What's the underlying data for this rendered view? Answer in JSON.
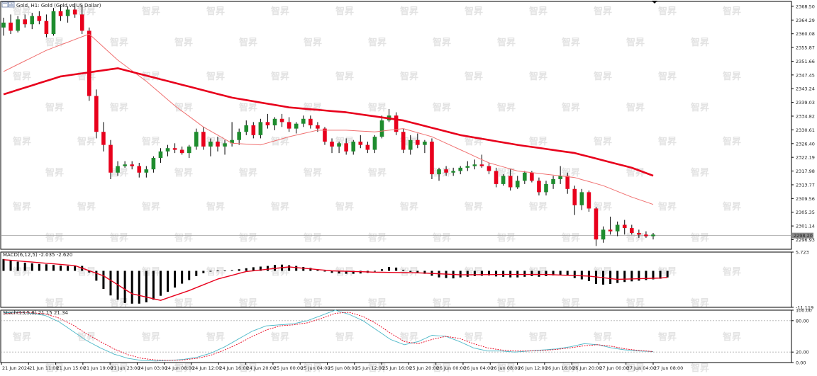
{
  "header": {
    "title": "Gold, H1:  Gold (Gold vs US Dollar)",
    "watermark": "智昇"
  },
  "colors": {
    "bull": "#1e8c2e",
    "bear": "#e8001c",
    "ma_slow": "#e8001c",
    "ma_fast": "#f07070",
    "macd_signal": "#e8001c",
    "macd_hist": "#000000",
    "stoch_main": "#4db8c8",
    "stoch_signal": "#e8001c",
    "bid_line": "#a0a0a0"
  },
  "chart_data": [
    {
      "type": "candlestick",
      "name": "Gold, H1",
      "ylim": [
        2294.0,
        2370.0
      ],
      "y_ticks": [
        "2368.50",
        "2364.29",
        "2360.08",
        "2355.87",
        "2351.66",
        "2347.45",
        "2343.24",
        "2339.03",
        "2334.82",
        "2330.61",
        "2326.40",
        "2322.19",
        "2317.98",
        "2313.77",
        "2309.56",
        "2305.35",
        "2301.14",
        "2296.93"
      ],
      "current_price_label": "2298.20",
      "current_price": 2298.2,
      "x_ticks": [
        "21 Jun 2024",
        "21 Jun 11:00",
        "21 Jun 15:00",
        "21 Jun 19:00",
        "21 Jun 23:00",
        "24 Jun 03:00",
        "24 Jun 08:00",
        "24 Jun 12:00",
        "24 Jun 16:00",
        "24 Jun 20:00",
        "25 Jun 00:00",
        "25 Jun 04:00",
        "25 Jun 08:00",
        "25 Jun 12:00",
        "25 Jun 16:00",
        "25 Jun 20:00",
        "26 Jun 00:00",
        "26 Jun 04:00",
        "26 Jun 08:00",
        "26 Jun 12:00",
        "26 Jun 16:00",
        "26 Jun 20:00",
        "27 Jun 00:00",
        "27 Jun 04:00",
        "27 Jun 08:00"
      ],
      "candles": [
        [
          2362.0,
          2365.0,
          2359.5,
          2363.5
        ],
        [
          2363.5,
          2366.0,
          2360.0,
          2361.0
        ],
        [
          2361.0,
          2365.5,
          2360.5,
          2364.5
        ],
        [
          2364.5,
          2366.0,
          2362.0,
          2363.0
        ],
        [
          2363.0,
          2366.5,
          2361.5,
          2365.5
        ],
        [
          2365.5,
          2367.0,
          2363.0,
          2364.0
        ],
        [
          2364.0,
          2366.0,
          2359.0,
          2360.0
        ],
        [
          2360.0,
          2368.0,
          2359.5,
          2367.0
        ],
        [
          2367.0,
          2369.0,
          2364.0,
          2365.5
        ],
        [
          2365.5,
          2368.5,
          2363.5,
          2367.5
        ],
        [
          2367.5,
          2369.5,
          2365.0,
          2366.0
        ],
        [
          2366.0,
          2369.0,
          2360.0,
          2361.0
        ],
        [
          2361.0,
          2362.0,
          2339.5,
          2341.0
        ],
        [
          2341.0,
          2343.0,
          2328.0,
          2330.0
        ],
        [
          2330.0,
          2333.0,
          2324.0,
          2326.0
        ],
        [
          2326.0,
          2327.5,
          2315.5,
          2317.5
        ],
        [
          2317.5,
          2321.0,
          2316.5,
          2319.5
        ],
        [
          2319.5,
          2321.0,
          2319.0,
          2320.0
        ],
        [
          2320.0,
          2321.0,
          2318.5,
          2319.5
        ],
        [
          2319.5,
          2320.5,
          2316.0,
          2317.5
        ],
        [
          2317.5,
          2319.5,
          2316.0,
          2318.5
        ],
        [
          2318.5,
          2322.5,
          2317.5,
          2322.0
        ],
        [
          2322.0,
          2325.0,
          2320.5,
          2324.0
        ],
        [
          2324.0,
          2326.0,
          2322.5,
          2325.0
        ],
        [
          2325.0,
          2326.5,
          2323.5,
          2324.5
        ],
        [
          2324.5,
          2325.5,
          2323.0,
          2323.5
        ],
        [
          2323.5,
          2326.0,
          2322.0,
          2325.5
        ],
        [
          2325.5,
          2331.0,
          2324.5,
          2330.0
        ],
        [
          2330.0,
          2331.5,
          2324.5,
          2325.5
        ],
        [
          2325.5,
          2328.0,
          2322.5,
          2327.0
        ],
        [
          2327.0,
          2328.5,
          2324.0,
          2325.5
        ],
        [
          2325.5,
          2327.5,
          2323.0,
          2326.5
        ],
        [
          2326.5,
          2333.0,
          2325.5,
          2327.5
        ],
        [
          2327.5,
          2331.0,
          2326.0,
          2330.0
        ],
        [
          2330.0,
          2333.5,
          2329.0,
          2332.0
        ],
        [
          2332.0,
          2333.0,
          2328.0,
          2329.0
        ],
        [
          2329.0,
          2334.0,
          2328.0,
          2333.0
        ],
        [
          2333.0,
          2335.5,
          2331.0,
          2332.0
        ],
        [
          2332.0,
          2334.5,
          2330.5,
          2334.0
        ],
        [
          2334.0,
          2335.5,
          2331.5,
          2333.0
        ],
        [
          2333.0,
          2334.5,
          2330.0,
          2331.0
        ],
        [
          2331.0,
          2333.0,
          2329.5,
          2332.5
        ],
        [
          2332.5,
          2335.0,
          2331.5,
          2334.0
        ],
        [
          2334.0,
          2335.0,
          2331.0,
          2332.0
        ],
        [
          2332.0,
          2333.0,
          2330.0,
          2331.0
        ],
        [
          2331.0,
          2331.5,
          2326.0,
          2327.0
        ],
        [
          2327.0,
          2328.0,
          2323.5,
          2325.5
        ],
        [
          2325.5,
          2327.0,
          2323.5,
          2326.5
        ],
        [
          2326.5,
          2328.0,
          2323.0,
          2324.0
        ],
        [
          2324.0,
          2327.5,
          2323.0,
          2327.0
        ],
        [
          2327.0,
          2329.0,
          2325.0,
          2326.0
        ],
        [
          2326.0,
          2327.0,
          2323.5,
          2324.5
        ],
        [
          2324.5,
          2329.0,
          2323.5,
          2328.5
        ],
        [
          2328.5,
          2335.0,
          2328.0,
          2333.5
        ],
        [
          2333.5,
          2337.0,
          2333.0,
          2335.0
        ],
        [
          2335.0,
          2336.0,
          2329.0,
          2330.0
        ],
        [
          2330.0,
          2331.0,
          2323.5,
          2324.5
        ],
        [
          2324.5,
          2329.0,
          2323.0,
          2327.5
        ],
        [
          2327.5,
          2329.5,
          2325.0,
          2326.0
        ],
        [
          2326.0,
          2327.5,
          2323.5,
          2327.0
        ],
        [
          2327.0,
          2328.0,
          2315.5,
          2317.0
        ],
        [
          2317.0,
          2319.0,
          2315.0,
          2318.5
        ],
        [
          2318.5,
          2319.5,
          2316.5,
          2317.5
        ],
        [
          2317.5,
          2319.0,
          2316.5,
          2318.0
        ],
        [
          2318.0,
          2319.5,
          2317.0,
          2319.0
        ],
        [
          2319.0,
          2321.0,
          2318.0,
          2319.5
        ],
        [
          2319.5,
          2321.5,
          2318.5,
          2320.0
        ],
        [
          2320.0,
          2323.0,
          2319.0,
          2319.5
        ],
        [
          2319.5,
          2320.5,
          2317.0,
          2318.0
        ],
        [
          2318.0,
          2319.0,
          2313.0,
          2314.0
        ],
        [
          2314.0,
          2317.0,
          2313.5,
          2316.5
        ],
        [
          2316.5,
          2318.5,
          2312.0,
          2313.0
        ],
        [
          2313.0,
          2316.5,
          2312.5,
          2315.0
        ],
        [
          2315.0,
          2318.0,
          2314.0,
          2317.5
        ],
        [
          2317.5,
          2318.0,
          2314.5,
          2315.0
        ],
        [
          2315.0,
          2316.0,
          2310.5,
          2311.5
        ],
        [
          2311.5,
          2315.0,
          2310.5,
          2314.0
        ],
        [
          2314.0,
          2316.5,
          2312.5,
          2315.5
        ],
        [
          2315.5,
          2319.5,
          2314.0,
          2316.5
        ],
        [
          2316.5,
          2317.5,
          2311.0,
          2312.5
        ],
        [
          2312.5,
          2313.5,
          2304.5,
          2307.5
        ],
        [
          2307.5,
          2312.5,
          2306.0,
          2311.5
        ],
        [
          2311.5,
          2312.0,
          2305.5,
          2306.5
        ],
        [
          2306.5,
          2307.0,
          2295.0,
          2297.0
        ],
        [
          2297.0,
          2301.0,
          2296.0,
          2300.0
        ],
        [
          2300.0,
          2304.0,
          2298.5,
          2299.5
        ],
        [
          2299.5,
          2302.5,
          2298.0,
          2301.5
        ],
        [
          2301.5,
          2303.0,
          2298.5,
          2300.5
        ],
        [
          2300.5,
          2301.5,
          2298.5,
          2299.0
        ],
        [
          2299.0,
          2300.0,
          2297.5,
          2298.5
        ],
        [
          2298.5,
          2299.5,
          2297.5,
          2298.0
        ],
        [
          2298.0,
          2299.0,
          2297.0,
          2298.5
        ]
      ],
      "ma_slow_anchors": [
        [
          0,
          2341.5
        ],
        [
          8,
          2347.0
        ],
        [
          16,
          2349.5
        ],
        [
          24,
          2345.0
        ],
        [
          32,
          2340.5
        ],
        [
          40,
          2337.5
        ],
        [
          48,
          2336.0
        ],
        [
          56,
          2333.5
        ],
        [
          64,
          2329.0
        ],
        [
          72,
          2326.0
        ],
        [
          80,
          2323.5
        ],
        [
          88,
          2319.0
        ],
        [
          96,
          2312.5
        ]
      ],
      "ma_fast_anchors": [
        [
          0,
          2348.5
        ],
        [
          6,
          2355.0
        ],
        [
          12,
          2360.0
        ],
        [
          16,
          2352.0
        ],
        [
          20,
          2345.5
        ],
        [
          24,
          2338.0
        ],
        [
          28,
          2331.5
        ],
        [
          32,
          2326.5
        ],
        [
          36,
          2326.0
        ],
        [
          40,
          2328.5
        ],
        [
          44,
          2330.5
        ],
        [
          48,
          2330.5
        ],
        [
          52,
          2330.0
        ],
        [
          56,
          2331.0
        ],
        [
          60,
          2328.5
        ],
        [
          64,
          2324.5
        ],
        [
          68,
          2320.5
        ],
        [
          72,
          2318.0
        ],
        [
          76,
          2317.0
        ],
        [
          80,
          2316.0
        ],
        [
          84,
          2313.5
        ],
        [
          88,
          2310.0
        ],
        [
          92,
          2307.0
        ],
        [
          96,
          2304.0
        ]
      ]
    },
    {
      "type": "bar",
      "name": "MACD(6,12,5)",
      "label": "MACD(6,12,5) -2.035 -2.620",
      "y_ticks": [
        "5.723",
        "-11.119"
      ],
      "ylim": [
        -11.119,
        5.723
      ],
      "histogram": [
        3.6,
        3.2,
        2.8,
        2.5,
        2.3,
        2.1,
        2.0,
        1.8,
        1.6,
        1.5,
        1.4,
        1.5,
        -0.5,
        -3.0,
        -5.5,
        -7.5,
        -8.8,
        -9.8,
        -10.0,
        -10.0,
        -9.6,
        -8.8,
        -7.6,
        -6.4,
        -5.1,
        -3.9,
        -2.8,
        -1.6,
        -0.7,
        -0.2,
        0.1,
        0.1,
        0.2,
        0.5,
        0.8,
        1.1,
        1.3,
        1.5,
        1.8,
        1.9,
        1.7,
        1.5,
        1.2,
        0.9,
        0.4,
        -0.2,
        -0.6,
        -0.8,
        -0.9,
        -0.9,
        -0.8,
        -0.6,
        -0.2,
        0.5,
        1.2,
        1.0,
        0.3,
        -0.3,
        -0.6,
        -0.9,
        -1.5,
        -2.0,
        -2.2,
        -2.3,
        -2.0,
        -1.8,
        -1.6,
        -1.5,
        -1.4,
        -1.7,
        -1.8,
        -2.0,
        -2.0,
        -1.8,
        -1.6,
        -1.8,
        -1.6,
        -1.4,
        -1.2,
        -1.3,
        -2.2,
        -2.6,
        -3.1,
        -4.0,
        -4.2,
        -4.0,
        -3.7,
        -3.4,
        -3.2,
        -3.0,
        -2.8,
        -2.6,
        -2.4,
        -2.0
      ],
      "signal_anchors": [
        [
          0,
          3.4
        ],
        [
          10,
          1.6
        ],
        [
          14,
          -1.5
        ],
        [
          18,
          -7.0
        ],
        [
          22,
          -9.0
        ],
        [
          26,
          -6.0
        ],
        [
          30,
          -2.5
        ],
        [
          34,
          -0.2
        ],
        [
          40,
          1.2
        ],
        [
          46,
          0.0
        ],
        [
          52,
          -0.4
        ],
        [
          58,
          -0.6
        ],
        [
          64,
          -1.2
        ],
        [
          70,
          -1.1
        ],
        [
          76,
          -1.1
        ],
        [
          82,
          -1.6
        ],
        [
          86,
          -2.6
        ],
        [
          92,
          -2.2
        ],
        [
          96,
          -1.4
        ]
      ]
    },
    {
      "type": "line",
      "name": "Stoch(13,5,8)",
      "label": "Stoch(13,5,8) 21.15 21.34",
      "y_ticks": [
        "100.00",
        "80.00",
        "20.00",
        "0.00"
      ],
      "ylim": [
        0,
        100
      ],
      "levels": [
        80,
        20
      ],
      "main_anchors": [
        [
          0,
          95
        ],
        [
          4,
          96
        ],
        [
          8,
          94
        ],
        [
          12,
          90
        ],
        [
          16,
          78
        ],
        [
          20,
          60
        ],
        [
          24,
          42
        ],
        [
          28,
          28
        ],
        [
          32,
          16
        ],
        [
          36,
          8
        ],
        [
          40,
          4
        ],
        [
          44,
          3
        ],
        [
          48,
          4
        ],
        [
          52,
          6
        ],
        [
          56,
          10
        ],
        [
          60,
          18
        ],
        [
          64,
          30
        ],
        [
          68,
          45
        ],
        [
          72,
          60
        ],
        [
          76,
          70
        ],
        [
          80,
          72
        ],
        [
          84,
          74
        ],
        [
          88,
          80
        ],
        [
          92,
          90
        ],
        [
          96,
          100
        ],
        [
          100,
          92
        ],
        [
          104,
          80
        ],
        [
          108,
          62
        ],
        [
          112,
          44
        ],
        [
          116,
          34
        ],
        [
          120,
          40
        ],
        [
          124,
          52
        ],
        [
          128,
          50
        ],
        [
          132,
          40
        ],
        [
          136,
          28
        ],
        [
          140,
          22
        ],
        [
          144,
          22
        ],
        [
          148,
          20
        ],
        [
          152,
          22
        ],
        [
          156,
          24
        ],
        [
          160,
          26
        ],
        [
          164,
          30
        ],
        [
          168,
          36
        ],
        [
          172,
          34
        ],
        [
          176,
          28
        ],
        [
          180,
          24
        ],
        [
          184,
          22
        ],
        [
          188,
          21
        ]
      ],
      "signal_anchors": [
        [
          0,
          93
        ],
        [
          4,
          95
        ],
        [
          8,
          95
        ],
        [
          12,
          93
        ],
        [
          16,
          85
        ],
        [
          20,
          72
        ],
        [
          24,
          55
        ],
        [
          28,
          40
        ],
        [
          32,
          26
        ],
        [
          36,
          15
        ],
        [
          40,
          8
        ],
        [
          44,
          5
        ],
        [
          48,
          4
        ],
        [
          52,
          5
        ],
        [
          56,
          8
        ],
        [
          60,
          14
        ],
        [
          64,
          24
        ],
        [
          68,
          36
        ],
        [
          72,
          50
        ],
        [
          76,
          62
        ],
        [
          80,
          70
        ],
        [
          84,
          72
        ],
        [
          88,
          76
        ],
        [
          92,
          84
        ],
        [
          96,
          94
        ],
        [
          100,
          96
        ],
        [
          104,
          88
        ],
        [
          108,
          74
        ],
        [
          112,
          56
        ],
        [
          116,
          40
        ],
        [
          120,
          36
        ],
        [
          124,
          44
        ],
        [
          128,
          50
        ],
        [
          132,
          46
        ],
        [
          136,
          36
        ],
        [
          140,
          28
        ],
        [
          144,
          24
        ],
        [
          148,
          22
        ],
        [
          152,
          22
        ],
        [
          156,
          23
        ],
        [
          160,
          25
        ],
        [
          164,
          28
        ],
        [
          168,
          32
        ],
        [
          172,
          34
        ],
        [
          176,
          31
        ],
        [
          180,
          26
        ],
        [
          184,
          23
        ],
        [
          188,
          21
        ]
      ]
    }
  ]
}
